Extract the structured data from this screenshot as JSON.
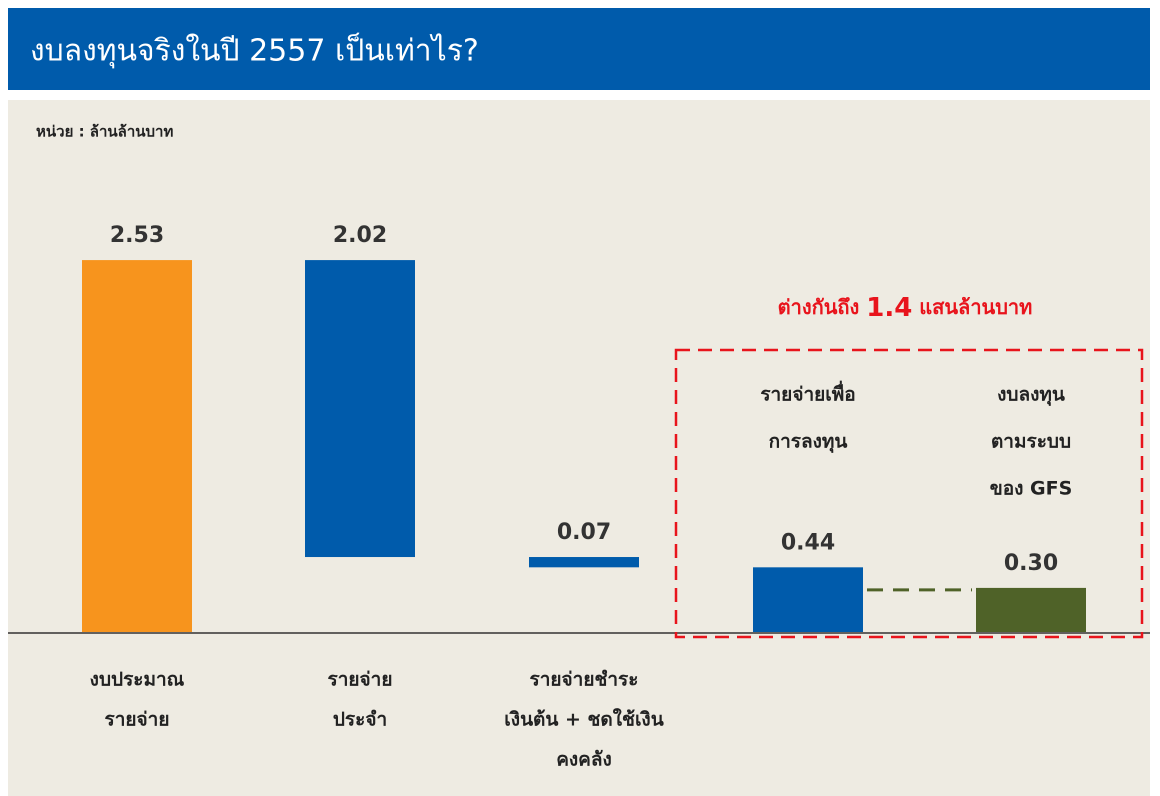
{
  "chart_data": {
    "type": "waterfall",
    "title": "งบลงทุนจริงในปี 2557 เป็นเท่าไร?",
    "unit_label": "หน่วย : ล้านล้านบาท",
    "categories": [
      [
        "งบประมาณ",
        "รายจ่าย"
      ],
      [
        "รายจ่าย",
        "ประจำ"
      ],
      [
        "รายจ่ายชำระ",
        "เงินต้น + ชดใช้เงิน",
        "คงคลัง"
      ],
      [
        "รายจ่ายเพื่อ",
        "การลงทุน"
      ],
      [
        "งบลงทุน",
        "ตามระบบ",
        "ของ GFS"
      ]
    ],
    "values": [
      2.53,
      2.02,
      0.07,
      0.44,
      0.3
    ],
    "value_labels": [
      "2.53",
      "2.02",
      "0.07",
      "0.44",
      "0.30"
    ],
    "measures": [
      "absolute",
      "decrease",
      "decrease",
      "total",
      "absolute"
    ],
    "colors": [
      "#f7941d",
      "#005bab",
      "#005bab",
      "#005bab",
      "#4f6228"
    ],
    "annotation": [
      "ต่างกันถึง ",
      "1.4",
      " แสนล้านบาท"
    ],
    "ylim": [
      0,
      3
    ]
  }
}
